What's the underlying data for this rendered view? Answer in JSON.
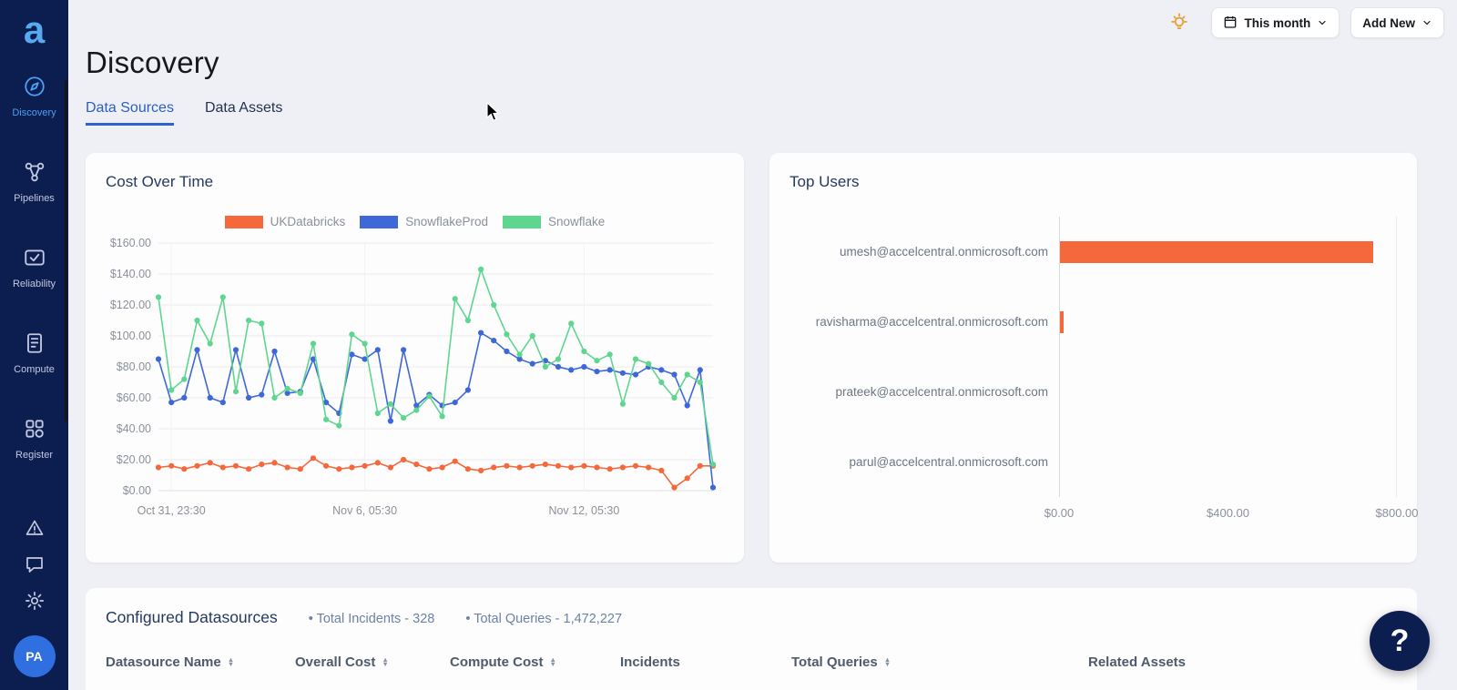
{
  "sidebar": {
    "logo": "a",
    "items": [
      {
        "label": "Discovery",
        "active": true
      },
      {
        "label": "Pipelines",
        "active": false
      },
      {
        "label": "Reliability",
        "active": false
      },
      {
        "label": "Compute",
        "active": false
      },
      {
        "label": "Register",
        "active": false
      }
    ],
    "avatar_initials": "PA"
  },
  "topbar": {
    "period_button": "This month",
    "add_new_button": "Add New"
  },
  "page": {
    "title": "Discovery",
    "tabs": [
      {
        "label": "Data Sources",
        "active": true
      },
      {
        "label": "Data Assets",
        "active": false
      }
    ]
  },
  "chart_data": [
    {
      "type": "line",
      "title": "Cost Over Time",
      "ylim": [
        0,
        160
      ],
      "ytick_step": 20,
      "grid": true,
      "legend_position": "top",
      "series": [
        {
          "name": "UKDatabricks",
          "color": "#f4683c",
          "values": [
            15,
            16,
            14,
            16,
            18,
            15,
            16,
            14,
            17,
            18,
            15,
            14,
            21,
            16,
            14,
            15,
            16,
            18,
            15,
            20,
            17,
            14,
            15,
            19,
            14,
            13,
            15,
            16,
            15,
            16,
            17,
            16,
            15,
            16,
            15,
            14,
            15,
            16,
            15,
            13,
            2,
            8,
            16,
            16
          ]
        },
        {
          "name": "SnowflakeProd",
          "color": "#3e68d8",
          "values": [
            85,
            57,
            60,
            91,
            60,
            57,
            91,
            60,
            62,
            90,
            63,
            64,
            85,
            57,
            50,
            88,
            85,
            91,
            45,
            91,
            55,
            62,
            55,
            57,
            65,
            102,
            97,
            90,
            85,
            82,
            84,
            80,
            78,
            80,
            77,
            78,
            76,
            75,
            80,
            78,
            75,
            55,
            78,
            2
          ]
        },
        {
          "name": "Snowflake",
          "color": "#5fd68f",
          "values": [
            125,
            65,
            72,
            110,
            95,
            125,
            64,
            110,
            108,
            60,
            66,
            63,
            95,
            46,
            42,
            101,
            95,
            50,
            56,
            47,
            52,
            61,
            48,
            124,
            110,
            143,
            120,
            101,
            88,
            100,
            80,
            85,
            108,
            90,
            84,
            88,
            56,
            85,
            82,
            70,
            60,
            75,
            70,
            17
          ]
        }
      ],
      "xticks": [
        {
          "label": "Oct 31, 23:30",
          "index": 1
        },
        {
          "label": "Nov 6, 05:30",
          "index": 16
        },
        {
          "label": "Nov 12, 05:30",
          "index": 33
        }
      ]
    },
    {
      "type": "bar",
      "title": "Top Users",
      "orientation": "horizontal",
      "categories": [
        "umesh@accelcentral.onmicrosoft.com",
        "ravisharma@accelcentral.onmicrosoft.com",
        "prateek@accelcentral.onmicrosoft.com",
        "parul@accelcentral.onmicrosoft.com"
      ],
      "values": [
        745,
        8,
        0,
        0
      ],
      "bar_color": "#f4683c",
      "xlim": [
        0,
        800
      ],
      "xticks": [
        {
          "label": "$0.00",
          "value": 0
        },
        {
          "label": "$400.00",
          "value": 400
        },
        {
          "label": "$800.00",
          "value": 800
        }
      ]
    }
  ],
  "datasources": {
    "title": "Configured Datasources",
    "stats": [
      "Total Incidents - 328",
      "Total Queries - 1,472,227"
    ],
    "columns": [
      {
        "label": "Datasource Name",
        "sortable": true
      },
      {
        "label": "Overall Cost",
        "sortable": true
      },
      {
        "label": "Compute Cost",
        "sortable": true
      },
      {
        "label": "Incidents",
        "sortable": false
      },
      {
        "label": "Total Queries",
        "sortable": true
      },
      {
        "label": "Related Assets",
        "sortable": false
      }
    ]
  },
  "help": {
    "label": "?"
  },
  "colors": {
    "sidebar_bg": "#0c1d50",
    "active_blue": "#4aa0f5",
    "accent_orange": "#f4683c",
    "series_blue": "#3e68d8",
    "series_green": "#5fd68f"
  }
}
